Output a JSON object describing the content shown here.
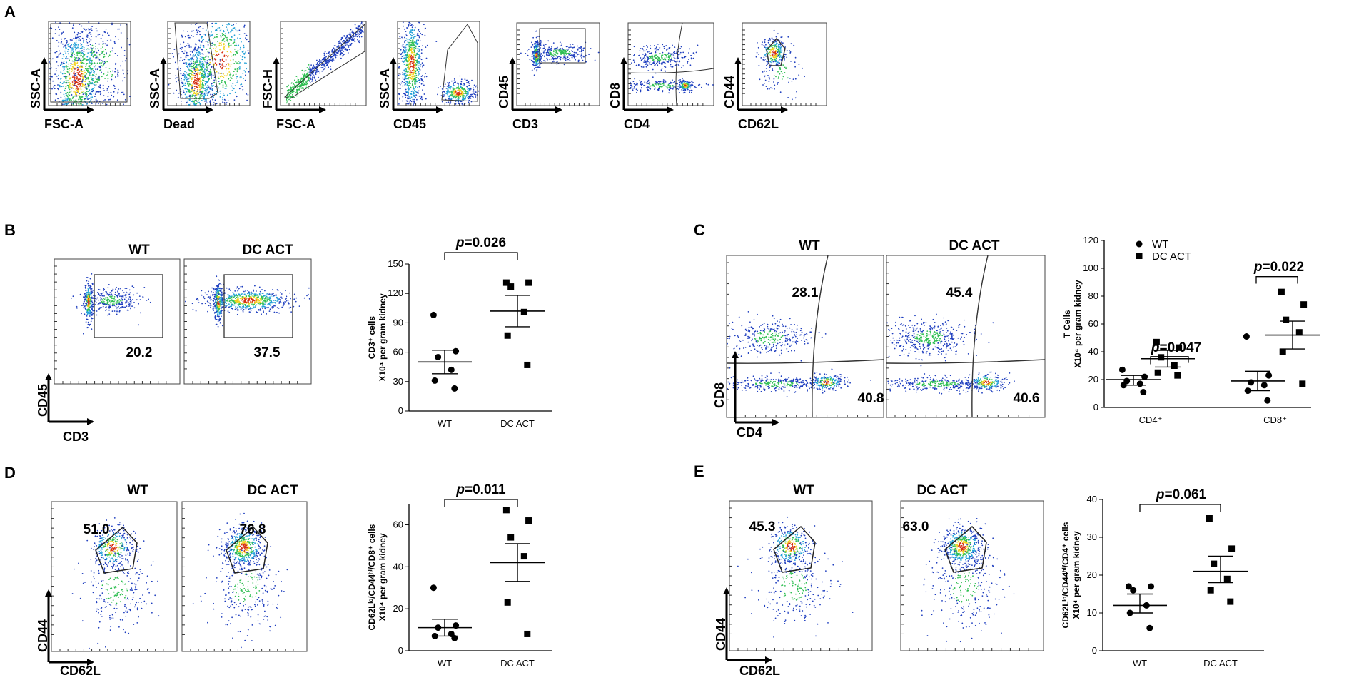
{
  "colors": {
    "ink": "#000000",
    "dot_low": "#1f3fbf",
    "dot_mid": "#21a0d8",
    "dot_hi": "#2fbf52",
    "dot_peak": "#f2d21e",
    "dot_max": "#d62f12"
  },
  "panel_A": {
    "label": "A",
    "plots": [
      {
        "x_label": "FSC-A",
        "y_label": "SSC-A"
      },
      {
        "x_label": "Dead",
        "y_label": "SSC-A"
      },
      {
        "x_label": "FSC-A",
        "y_label": "FSC-H"
      },
      {
        "x_label": "CD45",
        "y_label": "SSC-A"
      },
      {
        "x_label": "CD3",
        "y_label": "CD45"
      },
      {
        "x_label": "CD4",
        "y_label": "CD8"
      },
      {
        "x_label": "CD62L",
        "y_label": "CD44"
      }
    ]
  },
  "panel_B": {
    "label": "B",
    "titles": [
      "WT",
      "DC ACT"
    ],
    "gates": [
      "20.2",
      "37.5"
    ],
    "x_axis": "CD3",
    "y_axis": "CD45",
    "stat": {
      "p_prefix": "p",
      "p_suffix": "=0.026",
      "y_label_l1": "CD3⁺ cells",
      "y_label_l2": "X10⁴ per gram kidney"
    }
  },
  "panel_C": {
    "label": "C",
    "titles": [
      "WT",
      "DC ACT"
    ],
    "upper_left": [
      "28.1",
      "45.4"
    ],
    "lower_right": [
      "40.8",
      "40.6"
    ],
    "x_axis": "CD4",
    "y_axis": "CD8",
    "stat": {
      "p1_prefix": "p",
      "p1_suffix": "=0.047",
      "p2_prefix": "p",
      "p2_suffix": "=0.022",
      "y_label_l1": "T Cells",
      "y_label_l2": "X10⁴ per gram kidney",
      "legend": [
        "WT",
        "DC ACT"
      ]
    }
  },
  "panel_D": {
    "label": "D",
    "titles": [
      "WT",
      "DC ACT"
    ],
    "gates": [
      "51.0",
      "76.8"
    ],
    "x_axis": "CD62L",
    "y_axis": "CD44",
    "stat": {
      "p_prefix": "p",
      "p_suffix": "=0.011",
      "y_label_l1": "CD62Lˡᵒ/CD44ʰⁱ/CD8⁺ cells",
      "y_label_l2": "X10⁴ per gram kidney"
    }
  },
  "panel_E": {
    "label": "E",
    "titles": [
      "WT",
      "DC ACT"
    ],
    "gates": [
      "45.3",
      "63.0"
    ],
    "x_axis": "CD62L",
    "y_axis": "CD44",
    "stat": {
      "p_prefix": "p",
      "p_suffix": "=0.061",
      "y_label_l1": "CD62Lˡᵒ/CD44ʰⁱ/CD4⁺ cells",
      "y_label_l2": "X10⁴ per gram kidney"
    }
  },
  "chart_data": [
    {
      "type": "scatter",
      "panel": "B",
      "categories": [
        "WT",
        "DC ACT"
      ],
      "ylim": [
        0,
        150
      ],
      "yticks": [
        0,
        30,
        60,
        90,
        120,
        150
      ],
      "ylabel": "CD3⁺ cells X10⁴ per gram kidney",
      "series": [
        {
          "name": "WT",
          "marker": "circle",
          "values": [
            98,
            61,
            55,
            42,
            31,
            23
          ],
          "mean": 50,
          "sem_low": 38,
          "sem_high": 62
        },
        {
          "name": "DC ACT",
          "marker": "square",
          "values": [
            131,
            131,
            127,
            101,
            77,
            47
          ],
          "mean": 102,
          "sem_low": 86,
          "sem_high": 118
        }
      ],
      "annotation": "p=0.026"
    },
    {
      "type": "scatter",
      "panel": "C",
      "categories": [
        "CD4⁺",
        "CD8⁺"
      ],
      "ylim": [
        0,
        120
      ],
      "yticks": [
        0,
        20,
        40,
        60,
        80,
        100,
        120
      ],
      "ylabel": "T Cells X10⁴ per gram kidney",
      "legend": "top-left",
      "series": [
        {
          "name": "WT",
          "marker": "circle",
          "groups": [
            {
              "category": "CD4⁺",
              "values": [
                27,
                22,
                19,
                17,
                16,
                11
              ],
              "mean": 20,
              "sem_low": 16,
              "sem_high": 23
            },
            {
              "category": "CD8⁺",
              "values": [
                51,
                23,
                18,
                16,
                12,
                5
              ],
              "mean": 19,
              "sem_low": 12,
              "sem_high": 26
            }
          ]
        },
        {
          "name": "DC ACT",
          "marker": "square",
          "groups": [
            {
              "category": "CD4⁺",
              "values": [
                47,
                43,
                36,
                30,
                25,
                23
              ],
              "mean": 35,
              "sem_low": 29,
              "sem_high": 41
            },
            {
              "category": "CD8⁺",
              "values": [
                83,
                74,
                63,
                54,
                40,
                17
              ],
              "mean": 52,
              "sem_low": 42,
              "sem_high": 62
            }
          ]
        }
      ],
      "annotations": [
        "p=0.047",
        "p=0.022"
      ]
    },
    {
      "type": "scatter",
      "panel": "D",
      "categories": [
        "WT",
        "DC ACT"
      ],
      "ylim": [
        0,
        70
      ],
      "yticks": [
        0,
        20,
        40,
        60
      ],
      "ylabel": "CD62Lˡᵒ/CD44ʰⁱ/CD8⁺ cells X10⁴ per gram kidney",
      "series": [
        {
          "name": "WT",
          "marker": "circle",
          "values": [
            30,
            12,
            11,
            8,
            7,
            6
          ],
          "mean": 11,
          "sem_low": 7,
          "sem_high": 15
        },
        {
          "name": "DC ACT",
          "marker": "square",
          "values": [
            67,
            62,
            54,
            45,
            23,
            8
          ],
          "mean": 42,
          "sem_low": 33,
          "sem_high": 51
        }
      ],
      "annotation": "p=0.011"
    },
    {
      "type": "scatter",
      "panel": "E",
      "categories": [
        "WT",
        "DC ACT"
      ],
      "ylim": [
        0,
        40
      ],
      "yticks": [
        0,
        10,
        20,
        30,
        40
      ],
      "ylabel": "CD62Lˡᵒ/CD44ʰⁱ/CD4⁺ cells X10⁴ per gram kidney",
      "series": [
        {
          "name": "WT",
          "marker": "circle",
          "values": [
            17,
            17,
            16,
            12,
            10,
            6
          ],
          "mean": 12,
          "sem_low": 10,
          "sem_high": 15
        },
        {
          "name": "DC ACT",
          "marker": "square",
          "values": [
            35,
            27,
            23,
            19,
            16,
            13
          ],
          "mean": 21,
          "sem_low": 18,
          "sem_high": 25
        }
      ],
      "annotation": "p=0.061"
    }
  ]
}
